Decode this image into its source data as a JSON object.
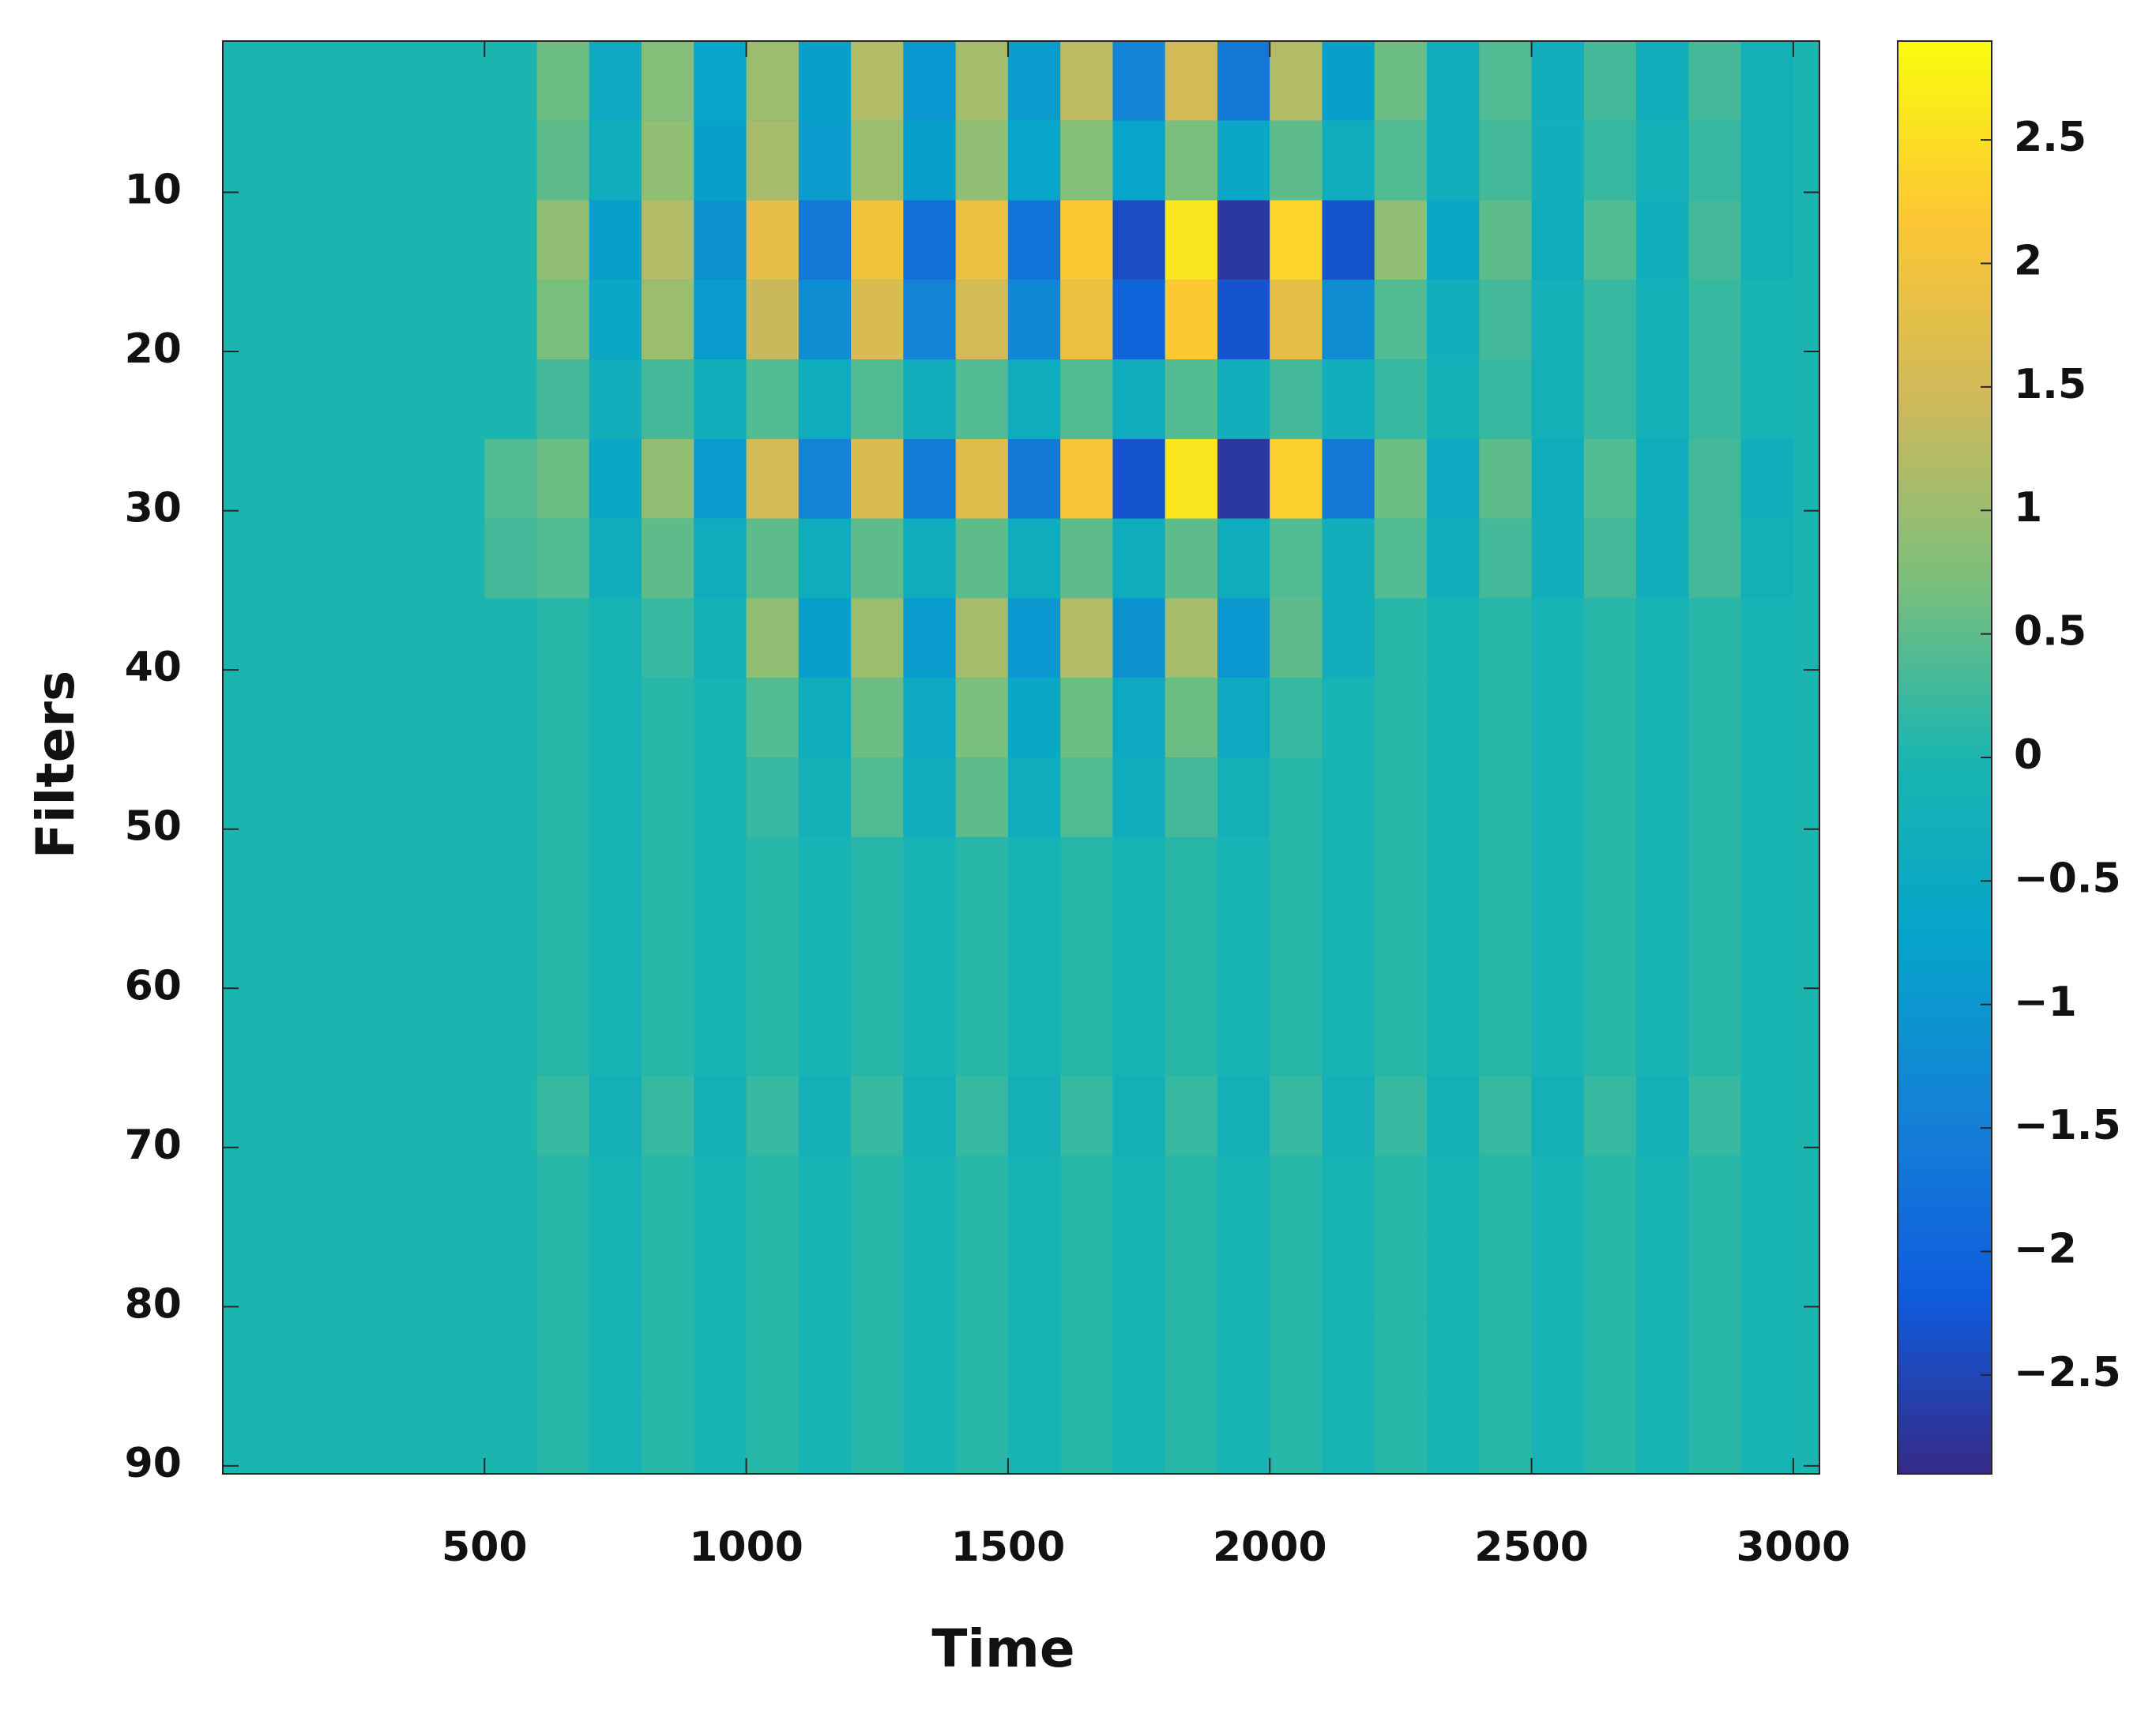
{
  "chart_data": {
    "type": "heatmap",
    "xlabel": "Time",
    "ylabel": "Filters",
    "xlim": [
      0,
      3050
    ],
    "ylim": [
      0.5,
      90.5
    ],
    "y_direction": "reverse",
    "xticks": [
      500,
      1000,
      1500,
      2000,
      2500,
      3000
    ],
    "yticks": [
      10,
      20,
      30,
      40,
      50,
      60,
      70,
      80,
      90
    ],
    "colormap": "parula",
    "clim": [
      -2.9,
      2.9
    ],
    "cticks": [
      {
        "value": -2.5,
        "label": "−2.5"
      },
      {
        "value": -2,
        "label": "−2"
      },
      {
        "value": -1.5,
        "label": "−1.5"
      },
      {
        "value": -1,
        "label": "−1"
      },
      {
        "value": -0.5,
        "label": "−0.5"
      },
      0,
      0.5,
      1,
      1.5,
      2,
      2.5
    ],
    "x": [
      50,
      150,
      250,
      350,
      450,
      550,
      650,
      750,
      850,
      950,
      1050,
      1150,
      1250,
      1350,
      1450,
      1550,
      1650,
      1750,
      1850,
      1950,
      2050,
      2150,
      2250,
      2350,
      2450,
      2550,
      2650,
      2750,
      2850,
      2950
    ],
    "y": [
      3,
      8,
      13,
      18,
      23,
      28,
      33,
      38,
      43,
      48,
      53,
      58,
      63,
      68,
      73,
      78,
      83,
      88
    ],
    "z": [
      [
        0,
        0,
        0,
        0,
        0,
        0,
        0.6,
        -0.5,
        0.8,
        -0.7,
        1.0,
        -0.8,
        1.2,
        -1.0,
        1.1,
        -0.9,
        1.3,
        -1.4,
        1.5,
        -1.6,
        1.2,
        -0.8,
        0.6,
        -0.4,
        0.4,
        -0.3,
        0.3,
        -0.3,
        0.3,
        -0.2
      ],
      [
        0,
        0,
        0,
        0,
        0,
        0,
        0.5,
        -0.4,
        0.9,
        -0.8,
        1.1,
        -0.9,
        1.0,
        -0.8,
        0.9,
        -0.7,
        0.8,
        -0.7,
        0.7,
        -0.6,
        0.5,
        -0.4,
        0.4,
        -0.3,
        0.3,
        -0.3,
        0.2,
        -0.2,
        0.2,
        -0.2
      ],
      [
        0,
        0,
        0,
        0,
        0,
        0,
        0.9,
        -0.8,
        1.2,
        -1.1,
        1.8,
        -1.6,
        2.0,
        -1.8,
        1.9,
        -1.7,
        2.2,
        -2.4,
        2.6,
        -2.7,
        2.4,
        -2.3,
        0.9,
        -0.6,
        0.5,
        -0.4,
        0.4,
        -0.3,
        0.3,
        -0.2
      ],
      [
        0,
        0,
        0,
        0,
        0,
        0,
        0.7,
        -0.6,
        1.0,
        -0.9,
        1.4,
        -1.2,
        1.6,
        -1.4,
        1.5,
        -1.3,
        1.9,
        -2.0,
        2.2,
        -2.3,
        1.8,
        -1.2,
        0.4,
        -0.3,
        0.3,
        -0.2,
        0.2,
        -0.2,
        0.2,
        -0.1
      ],
      [
        0,
        0,
        0,
        0,
        0,
        0,
        0.3,
        -0.3,
        0.3,
        -0.3,
        0.4,
        -0.4,
        0.4,
        -0.3,
        0.4,
        -0.4,
        0.4,
        -0.4,
        0.4,
        -0.3,
        0.3,
        -0.3,
        0.2,
        -0.2,
        0.2,
        -0.2,
        0.2,
        -0.2,
        0.2,
        -0.1
      ],
      [
        0,
        0,
        0,
        0,
        0,
        0.4,
        0.6,
        -0.6,
        0.9,
        -0.9,
        1.5,
        -1.4,
        1.6,
        -1.5,
        1.7,
        -1.6,
        2.1,
        -2.3,
        2.6,
        -2.7,
        2.3,
        -1.6,
        0.6,
        -0.5,
        0.5,
        -0.4,
        0.4,
        -0.4,
        0.3,
        -0.3
      ],
      [
        0,
        0,
        0,
        0,
        0,
        0.3,
        0.4,
        -0.3,
        0.5,
        -0.4,
        0.5,
        -0.4,
        0.5,
        -0.4,
        0.5,
        -0.4,
        0.5,
        -0.4,
        0.5,
        -0.4,
        0.4,
        -0.3,
        0.4,
        -0.3,
        0.3,
        -0.3,
        0.3,
        -0.3,
        0.3,
        -0.2
      ],
      [
        0,
        0,
        0,
        0,
        0,
        0,
        0.1,
        -0.1,
        0.2,
        -0.2,
        0.9,
        -0.8,
        1.0,
        -0.9,
        1.1,
        -1.0,
        1.2,
        -1.1,
        1.1,
        -1.0,
        0.5,
        -0.3,
        0.1,
        -0.1,
        0.1,
        -0.1,
        0.1,
        -0.1,
        0.1,
        -0.1
      ],
      [
        0,
        0,
        0,
        0,
        0,
        0,
        0.1,
        -0.1,
        0.1,
        -0.1,
        0.4,
        -0.4,
        0.6,
        -0.5,
        0.7,
        -0.6,
        0.6,
        -0.5,
        0.6,
        -0.5,
        0.2,
        -0.1,
        0.1,
        -0.1,
        0.1,
        -0.1,
        0.1,
        -0.1,
        0.1,
        -0.1
      ],
      [
        0,
        0,
        0,
        0,
        0,
        0,
        0.1,
        -0.1,
        0.1,
        -0.1,
        0.2,
        -0.2,
        0.4,
        -0.4,
        0.5,
        -0.4,
        0.4,
        -0.4,
        0.3,
        -0.2,
        0.1,
        -0.1,
        0.1,
        -0.1,
        0.1,
        -0.1,
        0.1,
        -0.1,
        0.1,
        -0.1
      ],
      [
        0,
        0,
        0,
        0,
        0,
        0,
        0.1,
        -0.1,
        0.1,
        -0.1,
        0.1,
        -0.1,
        0.1,
        -0.1,
        0.1,
        -0.1,
        0.1,
        -0.1,
        0.1,
        -0.1,
        0.1,
        -0.1,
        0.1,
        -0.1,
        0.1,
        -0.1,
        0.1,
        -0.1,
        0.1,
        -0.1
      ],
      [
        0,
        0,
        0,
        0,
        0,
        0,
        0.1,
        -0.1,
        0.1,
        -0.1,
        0.1,
        -0.1,
        0.1,
        -0.1,
        0.1,
        -0.1,
        0.1,
        -0.1,
        0.1,
        -0.1,
        0.1,
        -0.1,
        0.1,
        -0.1,
        0.1,
        -0.1,
        0.1,
        -0.1,
        0.1,
        -0.1
      ],
      [
        0,
        0,
        0,
        0,
        0,
        0,
        0.1,
        -0.1,
        0.1,
        -0.1,
        0.1,
        -0.1,
        0.1,
        -0.1,
        0.1,
        -0.1,
        0.1,
        -0.1,
        0.1,
        -0.1,
        0.1,
        -0.1,
        0.1,
        -0.1,
        0.1,
        -0.1,
        0.1,
        -0.1,
        0.1,
        -0.1
      ],
      [
        0,
        0,
        0,
        0,
        0,
        0,
        0.2,
        -0.2,
        0.2,
        -0.2,
        0.2,
        -0.2,
        0.2,
        -0.2,
        0.2,
        -0.2,
        0.2,
        -0.2,
        0.2,
        -0.2,
        0.2,
        -0.2,
        0.2,
        -0.2,
        0.2,
        -0.2,
        0.2,
        -0.2,
        0.2,
        -0.1
      ],
      [
        0,
        0,
        0,
        0,
        0,
        0,
        0.1,
        -0.1,
        0.1,
        -0.1,
        0.1,
        -0.1,
        0.1,
        -0.1,
        0.1,
        -0.1,
        0.1,
        -0.1,
        0.1,
        -0.1,
        0.1,
        -0.1,
        0.1,
        -0.1,
        0.1,
        -0.1,
        0.1,
        -0.1,
        0.1,
        -0.1
      ],
      [
        0,
        0,
        0,
        0,
        0,
        0,
        0.1,
        -0.1,
        0.1,
        -0.1,
        0.1,
        -0.1,
        0.1,
        -0.1,
        0.1,
        -0.1,
        0.1,
        -0.1,
        0.1,
        -0.1,
        0.1,
        -0.1,
        0.1,
        -0.1,
        0.1,
        -0.1,
        0.1,
        -0.1,
        0.1,
        -0.1
      ],
      [
        0,
        0,
        0,
        0,
        0,
        0,
        0.1,
        -0.1,
        0.1,
        -0.1,
        0.1,
        -0.1,
        0.1,
        -0.1,
        0.1,
        -0.1,
        0.1,
        -0.1,
        0.1,
        -0.1,
        0.1,
        -0.1,
        0.1,
        -0.1,
        0.1,
        -0.1,
        0.1,
        -0.1,
        0.1,
        -0.1
      ],
      [
        0,
        0,
        0,
        0,
        0,
        0,
        0.1,
        -0.1,
        0.1,
        -0.1,
        0.1,
        -0.1,
        0.1,
        -0.1,
        0.1,
        -0.1,
        0.1,
        -0.1,
        0.1,
        -0.1,
        0.1,
        -0.1,
        0.1,
        -0.1,
        0.1,
        -0.1,
        0.1,
        -0.1,
        0.1,
        -0.1
      ]
    ]
  }
}
